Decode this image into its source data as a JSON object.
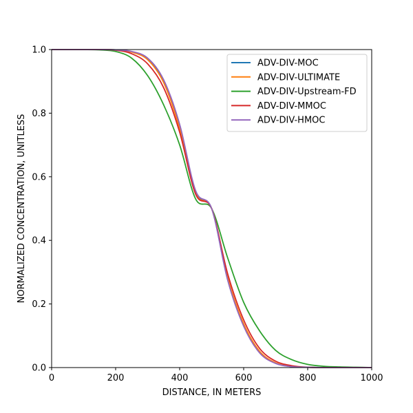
{
  "chart_data": {
    "type": "line",
    "title": "",
    "xlabel": "DISTANCE, IN METERS",
    "ylabel": "NORMALIZED CONCENTRATION, UNITLESS",
    "xlim": [
      0,
      1000
    ],
    "ylim": [
      0,
      1.0
    ],
    "xticks": [
      "0",
      "200",
      "400",
      "600",
      "800",
      "1000"
    ],
    "yticks": [
      "0.0",
      "0.2",
      "0.4",
      "0.6",
      "0.8",
      "1.0"
    ],
    "grid": false,
    "legend_position": "top-right",
    "x": [
      0,
      50,
      100,
      150,
      200,
      250,
      300,
      350,
      400,
      450,
      500,
      550,
      600,
      650,
      700,
      750,
      800,
      850,
      900,
      950,
      1000
    ],
    "series": [
      {
        "name": "ADV-DIV-MOC",
        "color": "#1f77b4",
        "values": [
          1.0,
          1.0,
          1.0,
          1.0,
          0.999,
          0.993,
          0.971,
          0.902,
          0.76,
          0.553,
          0.5,
          0.277,
          0.133,
          0.048,
          0.014,
          0.003,
          0.001,
          0.0,
          0.0,
          0.0,
          0.0
        ]
      },
      {
        "name": "ADV-DIV-ULTIMATE",
        "color": "#ff7f0e",
        "values": [
          1.0,
          1.0,
          1.0,
          1.0,
          0.999,
          0.992,
          0.968,
          0.896,
          0.752,
          0.548,
          0.5,
          0.282,
          0.138,
          0.051,
          0.015,
          0.004,
          0.001,
          0.0,
          0.0,
          0.0,
          0.0
        ]
      },
      {
        "name": "ADV-DIV-Upstream-FD",
        "color": "#2ca02c",
        "values": [
          1.0,
          1.0,
          1.0,
          0.999,
          0.994,
          0.973,
          0.918,
          0.826,
          0.7,
          0.53,
          0.5,
          0.345,
          0.205,
          0.115,
          0.054,
          0.025,
          0.01,
          0.004,
          0.002,
          0.001,
          0.0
        ]
      },
      {
        "name": "ADV-DIV-MMOC",
        "color": "#d62728",
        "values": [
          1.0,
          1.0,
          1.0,
          1.0,
          0.998,
          0.987,
          0.955,
          0.88,
          0.74,
          0.545,
          0.5,
          0.295,
          0.15,
          0.06,
          0.02,
          0.006,
          0.001,
          0.0,
          0.0,
          0.0,
          0.0
        ]
      },
      {
        "name": "ADV-DIV-HMOC",
        "color": "#9467bd",
        "values": [
          1.0,
          1.0,
          1.0,
          1.0,
          0.999,
          0.994,
          0.973,
          0.905,
          0.765,
          0.556,
          0.5,
          0.275,
          0.13,
          0.046,
          0.013,
          0.003,
          0.001,
          0.0,
          0.0,
          0.0,
          0.0
        ]
      }
    ]
  }
}
